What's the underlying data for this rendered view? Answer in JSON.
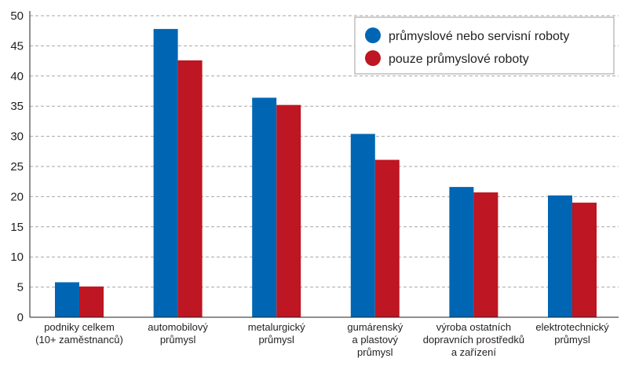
{
  "chart_data": {
    "type": "bar",
    "categories": [
      [
        "podniky celkem",
        "(10+ zaměstnanců)"
      ],
      [
        "automobilový",
        "průmysl"
      ],
      [
        "metalurgický",
        "průmysl"
      ],
      [
        "gumárenský",
        "a plastový",
        "průmysl"
      ],
      [
        "výroba ostatních",
        "dopravních prostředků",
        "a zařízení"
      ],
      [
        "elektrotechnický",
        "průmysl"
      ]
    ],
    "series": [
      {
        "name": "průmyslové nebo servisní roboty",
        "color": "#0066b3",
        "values": [
          5.8,
          47.8,
          36.4,
          30.4,
          21.6,
          20.2
        ]
      },
      {
        "name": "pouze průmyslové roboty",
        "color": "#be1622",
        "values": [
          5.1,
          42.6,
          35.2,
          26.1,
          20.7,
          19.0
        ]
      }
    ],
    "ylim": [
      0,
      50
    ],
    "yticks": [
      0,
      5,
      10,
      15,
      20,
      25,
      30,
      35,
      40,
      45,
      50
    ],
    "grid": true,
    "legend_position": "top-right"
  }
}
